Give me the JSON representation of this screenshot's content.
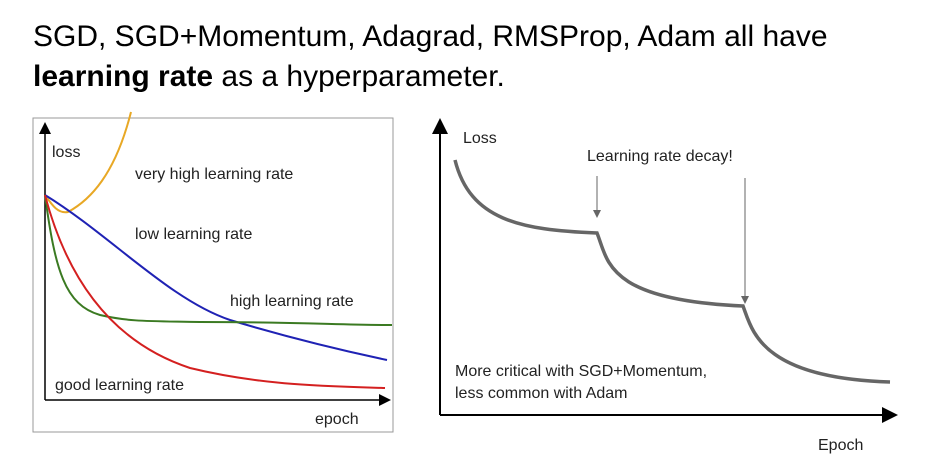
{
  "title": {
    "line1": "SGD, SGD+Momentum, Adagrad, RMSProp, Adam all have",
    "bold": "learning rate",
    "rest": " as a hyperparameter."
  },
  "left_figure": {
    "y_label": "loss",
    "x_label": "epoch",
    "curves": [
      {
        "label": "very high learning rate",
        "color": "#e8a825"
      },
      {
        "label": "low learning rate",
        "color": "#1f22b4"
      },
      {
        "label": "high learning rate",
        "color": "#3b7a22"
      },
      {
        "label": "good learning rate",
        "color": "#d42020"
      }
    ]
  },
  "right_figure": {
    "y_label": "Loss",
    "x_label": "Epoch",
    "annotation": "Learning rate decay!",
    "note": [
      "More critical with SGD+Momentum,",
      "less common with Adam"
    ],
    "curve_color": "#666666"
  }
}
